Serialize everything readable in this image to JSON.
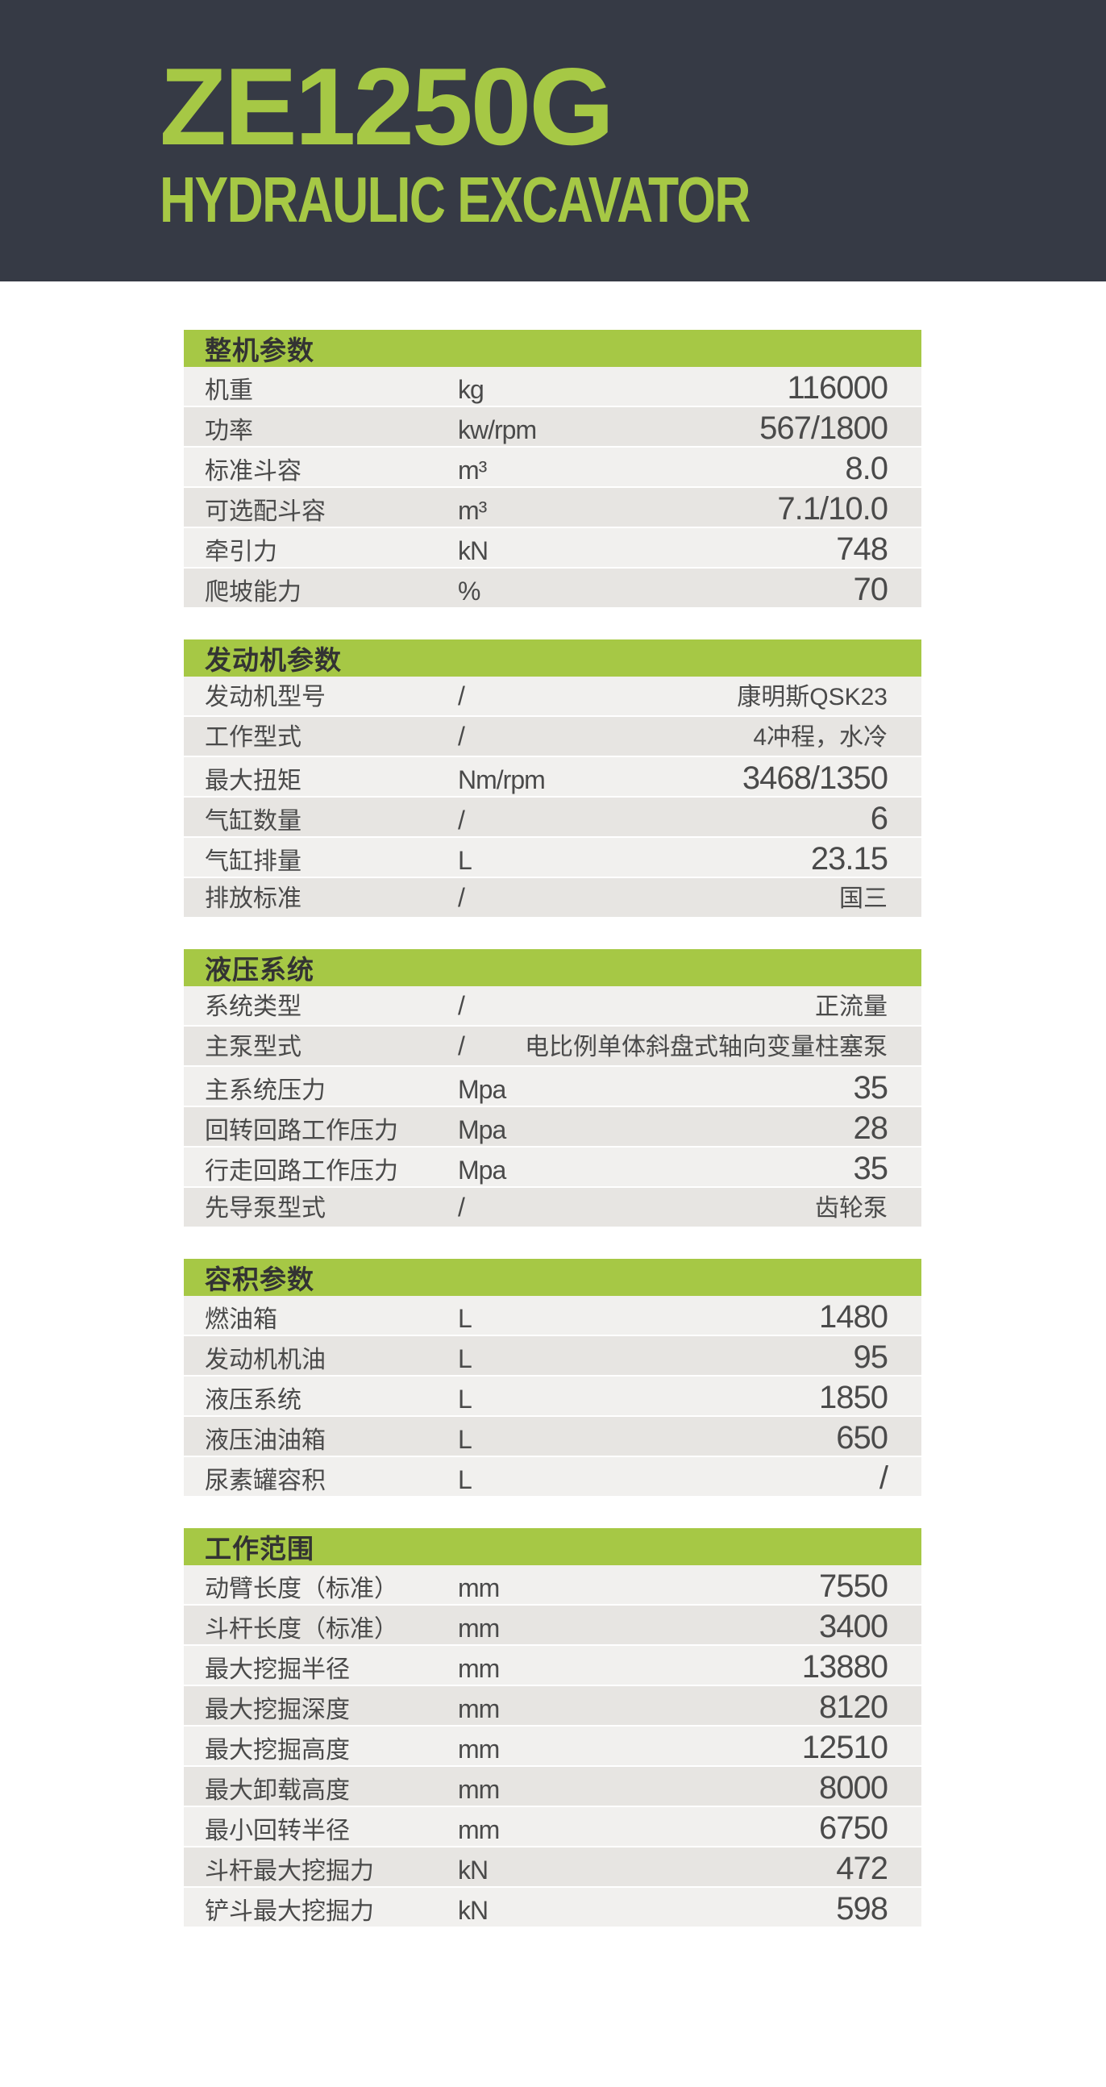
{
  "header": {
    "model": "ZE1250G",
    "subtitle": "HYDRAULIC EXCAVATOR"
  },
  "colors": {
    "accent_green": "#a6c845",
    "header_dark": "#363a45",
    "row_light": "#f1f0ee",
    "row_dark": "#e7e5e2",
    "text": "#4a4a4a"
  },
  "sections": [
    {
      "title": "整机参数",
      "rows": [
        {
          "label": "机重",
          "unit": "kg",
          "value": "116000"
        },
        {
          "label": "功率",
          "unit": "kw/rpm",
          "value": "567/1800"
        },
        {
          "label": "标准斗容",
          "unit": "m³",
          "value": "8.0"
        },
        {
          "label": "可选配斗容",
          "unit": "m³",
          "value": "7.1/10.0"
        },
        {
          "label": "牵引力",
          "unit": "kN",
          "value": "748"
        },
        {
          "label": "爬坡能力",
          "unit": "%",
          "value": "70"
        }
      ]
    },
    {
      "title": "发动机参数",
      "rows": [
        {
          "label": "发动机型号",
          "unit": "/",
          "value": "康明斯QSK23"
        },
        {
          "label": "工作型式",
          "unit": "/",
          "value": "4冲程，水冷"
        },
        {
          "label": "最大扭矩",
          "unit": "Nm/rpm",
          "value": "3468/1350"
        },
        {
          "label": "气缸数量",
          "unit": "/",
          "value": "6"
        },
        {
          "label": "气缸排量",
          "unit": "L",
          "value": "23.15"
        },
        {
          "label": "排放标准",
          "unit": "/",
          "value": "国三"
        }
      ]
    },
    {
      "title": "液压系统",
      "rows": [
        {
          "label": "系统类型",
          "unit": "/",
          "value": "正流量"
        },
        {
          "label": "主泵型式",
          "unit": "/",
          "value": "电比例单体斜盘式轴向变量柱塞泵"
        },
        {
          "label": "主系统压力",
          "unit": "Mpa",
          "value": "35"
        },
        {
          "label": "回转回路工作压力",
          "unit": "Mpa",
          "value": "28"
        },
        {
          "label": "行走回路工作压力",
          "unit": "Mpa",
          "value": "35"
        },
        {
          "label": "先导泵型式",
          "unit": "/",
          "value": "齿轮泵"
        }
      ]
    },
    {
      "title": "容积参数",
      "rows": [
        {
          "label": "燃油箱",
          "unit": "L",
          "value": "1480"
        },
        {
          "label": "发动机机油",
          "unit": "L",
          "value": "95"
        },
        {
          "label": "液压系统",
          "unit": "L",
          "value": "1850"
        },
        {
          "label": "液压油油箱",
          "unit": "L",
          "value": "650"
        },
        {
          "label": "尿素罐容积",
          "unit": "L",
          "value": "/"
        }
      ]
    },
    {
      "title": "工作范围",
      "rows": [
        {
          "label": "动臂长度（标准）",
          "unit": "mm",
          "value": "7550"
        },
        {
          "label": "斗杆长度（标准）",
          "unit": "mm",
          "value": "3400"
        },
        {
          "label": "最大挖掘半径",
          "unit": "mm",
          "value": "13880"
        },
        {
          "label": "最大挖掘深度",
          "unit": "mm",
          "value": "8120"
        },
        {
          "label": "最大挖掘高度",
          "unit": "mm",
          "value": "12510"
        },
        {
          "label": "最大卸载高度",
          "unit": "mm",
          "value": "8000"
        },
        {
          "label": "最小回转半径",
          "unit": "mm",
          "value": "6750"
        },
        {
          "label": "斗杆最大挖掘力",
          "unit": "kN",
          "value": "472"
        },
        {
          "label": "铲斗最大挖掘力",
          "unit": "kN",
          "value": "598"
        }
      ]
    }
  ]
}
